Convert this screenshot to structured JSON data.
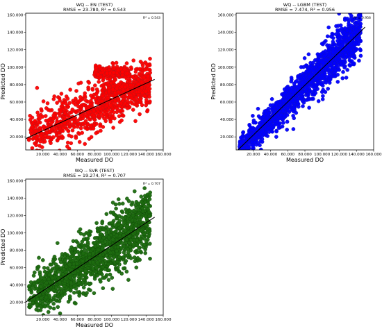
{
  "chart_data": [
    {
      "id": "en",
      "type": "scatter",
      "title": "WQ -- EN (TEST)",
      "subtitle": "RMSE = 23.780, R² = 0.543",
      "xlabel": "Measured   DO",
      "ylabel": "Predicted  DO",
      "r2_label": "R² = 0.543",
      "xlim": [
        0,
        160
      ],
      "ylim": [
        5,
        162
      ],
      "x_ticks": [
        20,
        40,
        60,
        80,
        100,
        120,
        140,
        160
      ],
      "x_tick_labels": [
        "20.000",
        "40.000",
        "60.000",
        "80.000",
        "100.000",
        "120.000",
        "140.000",
        "160.000"
      ],
      "y_ticks": [
        20,
        40,
        60,
        80,
        100,
        120,
        140,
        160
      ],
      "y_tick_labels": [
        "20.000",
        "40.000",
        "60.000",
        "80.000",
        "100.000",
        "120.000",
        "140.000",
        "160.000"
      ],
      "grid": false,
      "fit_line": [
        [
          0,
          18
        ],
        [
          150,
          86
        ]
      ],
      "point_color": "#ff0000",
      "edge_color": "#b0181a",
      "noise": 14,
      "n_points": 1400,
      "seed": 11
    },
    {
      "id": "lgbm",
      "type": "scatter",
      "title": "WQ -- LGBM (TEST)",
      "subtitle": "RMSE = 7.474, R² = 0.956",
      "xlabel": "Measured   DO",
      "ylabel": "Predicted  DO",
      "r2_label": "R² = 0.956",
      "xlim": [
        0,
        160
      ],
      "ylim": [
        5,
        162
      ],
      "x_ticks": [
        20,
        40,
        60,
        80,
        100,
        120,
        140,
        160
      ],
      "x_tick_labels": [
        "20.000",
        "40.000",
        "60.000",
        "80.000",
        "100.000",
        "120.000",
        "140.000",
        "160.000"
      ],
      "y_ticks": [
        20,
        40,
        60,
        80,
        100,
        120,
        140,
        160
      ],
      "y_tick_labels": [
        "20.000",
        "40.000",
        "60.000",
        "80.000",
        "100.000",
        "120.000",
        "140.000",
        "160.000"
      ],
      "grid": false,
      "fit_line": [
        [
          0,
          3
        ],
        [
          150,
          146
        ]
      ],
      "point_color": "#0000ff",
      "edge_color": "#1010c0",
      "noise": 7,
      "n_points": 1500,
      "seed": 23
    },
    {
      "id": "svr",
      "type": "scatter",
      "title": "WQ -- SVR (TEST)",
      "subtitle": "RMSE = 19.274, R² = 0.707",
      "xlabel": "Measured   DO",
      "ylabel": "Predicted  DO",
      "r2_label": "R² = 0.707",
      "xlim": [
        0,
        160
      ],
      "ylim": [
        5,
        162
      ],
      "x_ticks": [
        20,
        40,
        60,
        80,
        100,
        120,
        140,
        160
      ],
      "x_tick_labels": [
        "20.000",
        "40.000",
        "60.000",
        "80.000",
        "100.000",
        "120.000",
        "140.000",
        "160.000"
      ],
      "y_ticks": [
        20,
        40,
        60,
        80,
        100,
        120,
        140,
        160
      ],
      "y_tick_labels": [
        "20.000",
        "40.000",
        "60.000",
        "80.000",
        "100.000",
        "120.000",
        "140.000",
        "160.000"
      ],
      "grid": false,
      "fit_line": [
        [
          0,
          20
        ],
        [
          150,
          118
        ]
      ],
      "point_color": "#1e6b10",
      "edge_color": "#0f4a08",
      "noise": 13,
      "n_points": 1400,
      "seed": 37
    }
  ]
}
